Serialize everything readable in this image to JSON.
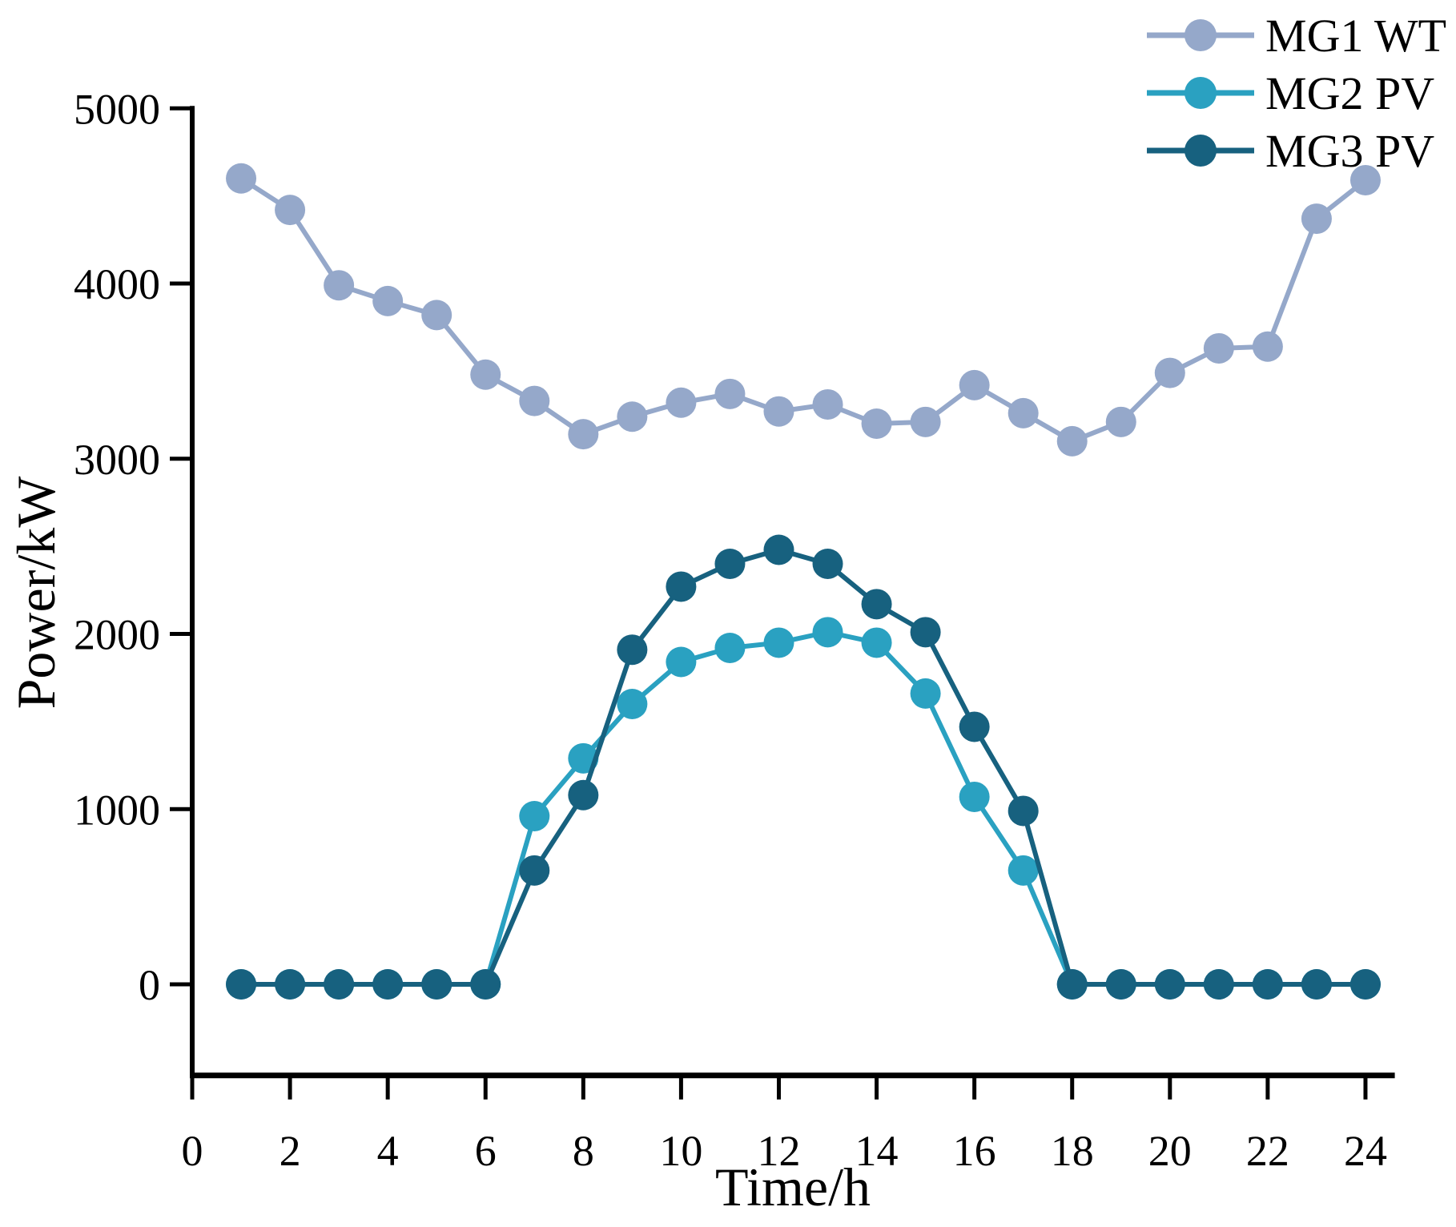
{
  "chart_data": {
    "type": "line",
    "title": "",
    "xlabel": "Time/h",
    "ylabel": "Power/kW",
    "x": [
      1,
      2,
      3,
      4,
      5,
      6,
      7,
      8,
      9,
      10,
      11,
      12,
      13,
      14,
      15,
      16,
      17,
      18,
      19,
      20,
      21,
      22,
      23,
      24
    ],
    "series": [
      {
        "name": "MG1 WT",
        "color": "#95a8ca",
        "values": [
          4600,
          4420,
          3990,
          3900,
          3820,
          3480,
          3330,
          3140,
          3240,
          3320,
          3370,
          3270,
          3310,
          3200,
          3210,
          3420,
          3260,
          3100,
          3210,
          3490,
          3630,
          3640,
          4370,
          4590
        ]
      },
      {
        "name": "MG2 PV",
        "color": "#2aa1c1",
        "values": [
          0,
          0,
          0,
          0,
          0,
          0,
          960,
          1290,
          1600,
          1840,
          1920,
          1950,
          2010,
          1950,
          1660,
          1070,
          650,
          0,
          0,
          0,
          0,
          0,
          0,
          0
        ]
      },
      {
        "name": "MG3 PV",
        "color": "#17617f",
        "values": [
          0,
          0,
          0,
          0,
          0,
          0,
          650,
          1080,
          1910,
          2270,
          2400,
          2480,
          2400,
          2170,
          2010,
          1470,
          990,
          0,
          0,
          0,
          0,
          0,
          0,
          0
        ]
      }
    ],
    "x_ticks": [
      0,
      2,
      4,
      6,
      8,
      10,
      12,
      14,
      16,
      18,
      20,
      22,
      24
    ],
    "y_ticks": [
      0,
      1000,
      2000,
      3000,
      4000,
      5000
    ],
    "xlim": [
      0,
      24.6
    ],
    "ylim": [
      -520,
      5000
    ],
    "grid": false,
    "legend_position": "top-right",
    "axis_color": "#000000",
    "background_color": "#ffffff",
    "marker": "circle"
  }
}
